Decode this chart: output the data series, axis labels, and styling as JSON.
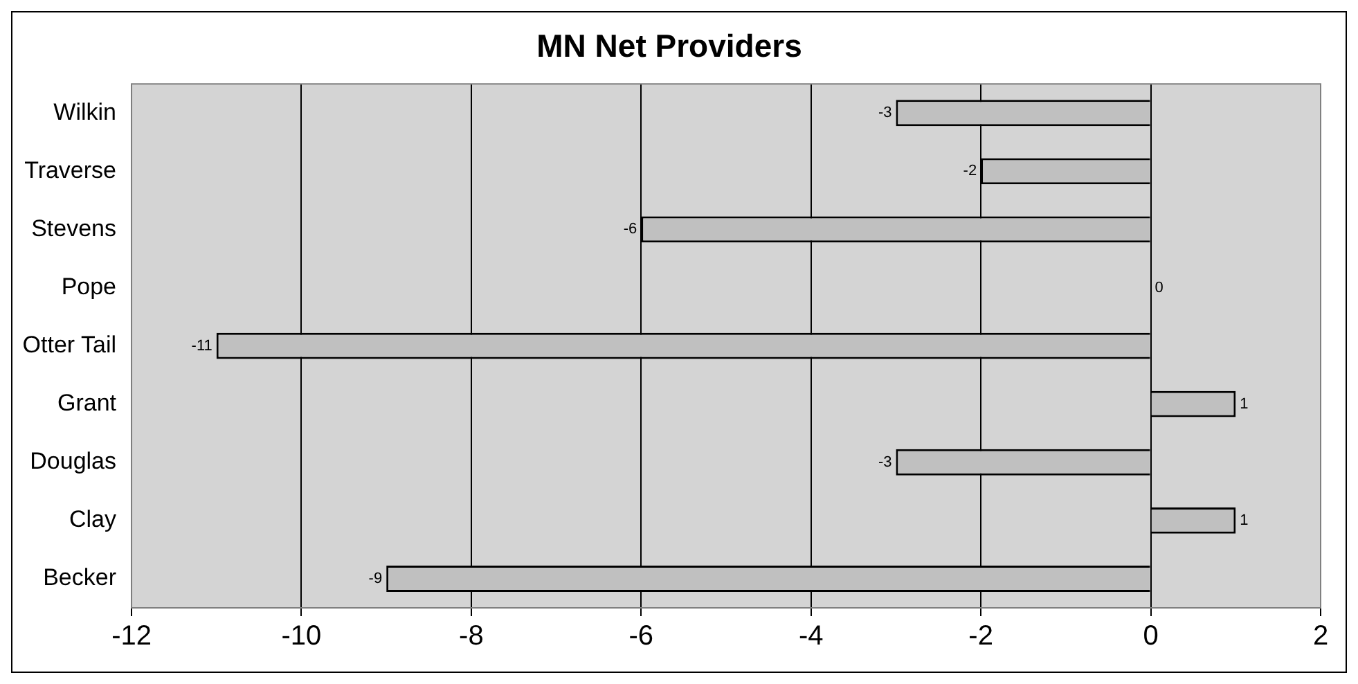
{
  "chart_data": {
    "type": "bar",
    "orientation": "horizontal",
    "title": "MN Net Providers",
    "categories": [
      "Wilkin",
      "Traverse",
      "Stevens",
      "Pope",
      "Otter Tail",
      "Grant",
      "Douglas",
      "Clay",
      "Becker"
    ],
    "values": [
      -3,
      -2,
      -6,
      0,
      -11,
      1,
      -3,
      1,
      -9
    ],
    "color": "#c0c0c0",
    "xlim": [
      -12,
      2
    ],
    "xticks": [
      -12,
      -10,
      -8,
      -6,
      -4,
      -2,
      0,
      2
    ],
    "grid": "x",
    "legend": false,
    "data_labels": true
  }
}
